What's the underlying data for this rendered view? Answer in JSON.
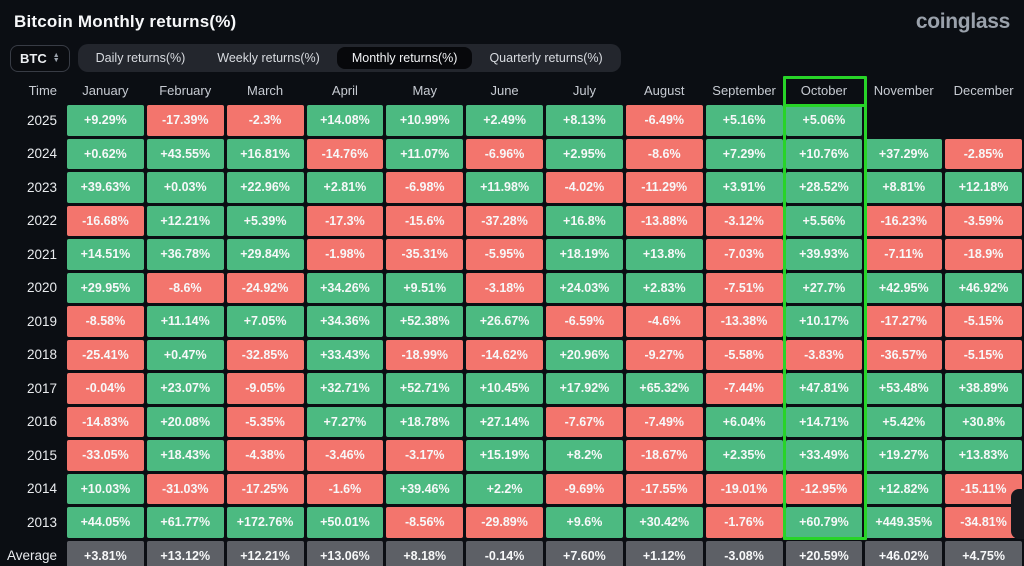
{
  "header": {
    "title": "Bitcoin Monthly returns(%)",
    "logo": "coinglass"
  },
  "controls": {
    "symbol_select": {
      "value": "BTC"
    },
    "tabs": [
      {
        "label": "Daily returns(%)",
        "active": false
      },
      {
        "label": "Weekly returns(%)",
        "active": false
      },
      {
        "label": "Monthly returns(%)",
        "active": true
      },
      {
        "label": "Quarterly returns(%)",
        "active": false
      }
    ]
  },
  "table": {
    "columns": [
      "Time",
      "January",
      "February",
      "March",
      "April",
      "May",
      "June",
      "July",
      "August",
      "September",
      "October",
      "November",
      "December"
    ],
    "highlighted_column": "October",
    "rows": [
      {
        "time": "2025",
        "values": [
          "+9.29%",
          "-17.39%",
          "-2.3%",
          "+14.08%",
          "+10.99%",
          "+2.49%",
          "+8.13%",
          "-6.49%",
          "+5.16%",
          "+5.06%",
          null,
          null
        ]
      },
      {
        "time": "2024",
        "values": [
          "+0.62%",
          "+43.55%",
          "+16.81%",
          "-14.76%",
          "+11.07%",
          "-6.96%",
          "+2.95%",
          "-8.6%",
          "+7.29%",
          "+10.76%",
          "+37.29%",
          "-2.85%"
        ]
      },
      {
        "time": "2023",
        "values": [
          "+39.63%",
          "+0.03%",
          "+22.96%",
          "+2.81%",
          "-6.98%",
          "+11.98%",
          "-4.02%",
          "-11.29%",
          "+3.91%",
          "+28.52%",
          "+8.81%",
          "+12.18%"
        ]
      },
      {
        "time": "2022",
        "values": [
          "-16.68%",
          "+12.21%",
          "+5.39%",
          "-17.3%",
          "-15.6%",
          "-37.28%",
          "+16.8%",
          "-13.88%",
          "-3.12%",
          "+5.56%",
          "-16.23%",
          "-3.59%"
        ]
      },
      {
        "time": "2021",
        "values": [
          "+14.51%",
          "+36.78%",
          "+29.84%",
          "-1.98%",
          "-35.31%",
          "-5.95%",
          "+18.19%",
          "+13.8%",
          "-7.03%",
          "+39.93%",
          "-7.11%",
          "-18.9%"
        ]
      },
      {
        "time": "2020",
        "values": [
          "+29.95%",
          "-8.6%",
          "-24.92%",
          "+34.26%",
          "+9.51%",
          "-3.18%",
          "+24.03%",
          "+2.83%",
          "-7.51%",
          "+27.7%",
          "+42.95%",
          "+46.92%"
        ]
      },
      {
        "time": "2019",
        "values": [
          "-8.58%",
          "+11.14%",
          "+7.05%",
          "+34.36%",
          "+52.38%",
          "+26.67%",
          "-6.59%",
          "-4.6%",
          "-13.38%",
          "+10.17%",
          "-17.27%",
          "-5.15%"
        ]
      },
      {
        "time": "2018",
        "values": [
          "-25.41%",
          "+0.47%",
          "-32.85%",
          "+33.43%",
          "-18.99%",
          "-14.62%",
          "+20.96%",
          "-9.27%",
          "-5.58%",
          "-3.83%",
          "-36.57%",
          "-5.15%"
        ]
      },
      {
        "time": "2017",
        "values": [
          "-0.04%",
          "+23.07%",
          "-9.05%",
          "+32.71%",
          "+52.71%",
          "+10.45%",
          "+17.92%",
          "+65.32%",
          "-7.44%",
          "+47.81%",
          "+53.48%",
          "+38.89%"
        ]
      },
      {
        "time": "2016",
        "values": [
          "-14.83%",
          "+20.08%",
          "-5.35%",
          "+7.27%",
          "+18.78%",
          "+27.14%",
          "-7.67%",
          "-7.49%",
          "+6.04%",
          "+14.71%",
          "+5.42%",
          "+30.8%"
        ]
      },
      {
        "time": "2015",
        "values": [
          "-33.05%",
          "+18.43%",
          "-4.38%",
          "-3.46%",
          "-3.17%",
          "+15.19%",
          "+8.2%",
          "-18.67%",
          "+2.35%",
          "+33.49%",
          "+19.27%",
          "+13.83%"
        ]
      },
      {
        "time": "2014",
        "values": [
          "+10.03%",
          "-31.03%",
          "-17.25%",
          "-1.6%",
          "+39.46%",
          "+2.2%",
          "-9.69%",
          "-17.55%",
          "-19.01%",
          "-12.95%",
          "+12.82%",
          "-15.11%"
        ]
      },
      {
        "time": "2013",
        "values": [
          "+44.05%",
          "+61.77%",
          "+172.76%",
          "+50.01%",
          "-8.56%",
          "-29.89%",
          "+9.6%",
          "+30.42%",
          "-1.76%",
          "+60.79%",
          "+449.35%",
          "-34.81%"
        ]
      },
      {
        "time": "Average",
        "is_average": true,
        "values": [
          "+3.81%",
          "+13.12%",
          "+12.21%",
          "+13.06%",
          "+8.18%",
          "-0.14%",
          "+7.60%",
          "+1.12%",
          "-3.08%",
          "+20.59%",
          "+46.02%",
          "+4.75%"
        ]
      }
    ]
  },
  "colors": {
    "positive": "#4cba81",
    "negative": "#f3756d",
    "average": "#5d6066",
    "highlight": "#28d428",
    "background": "#0b0e13"
  }
}
